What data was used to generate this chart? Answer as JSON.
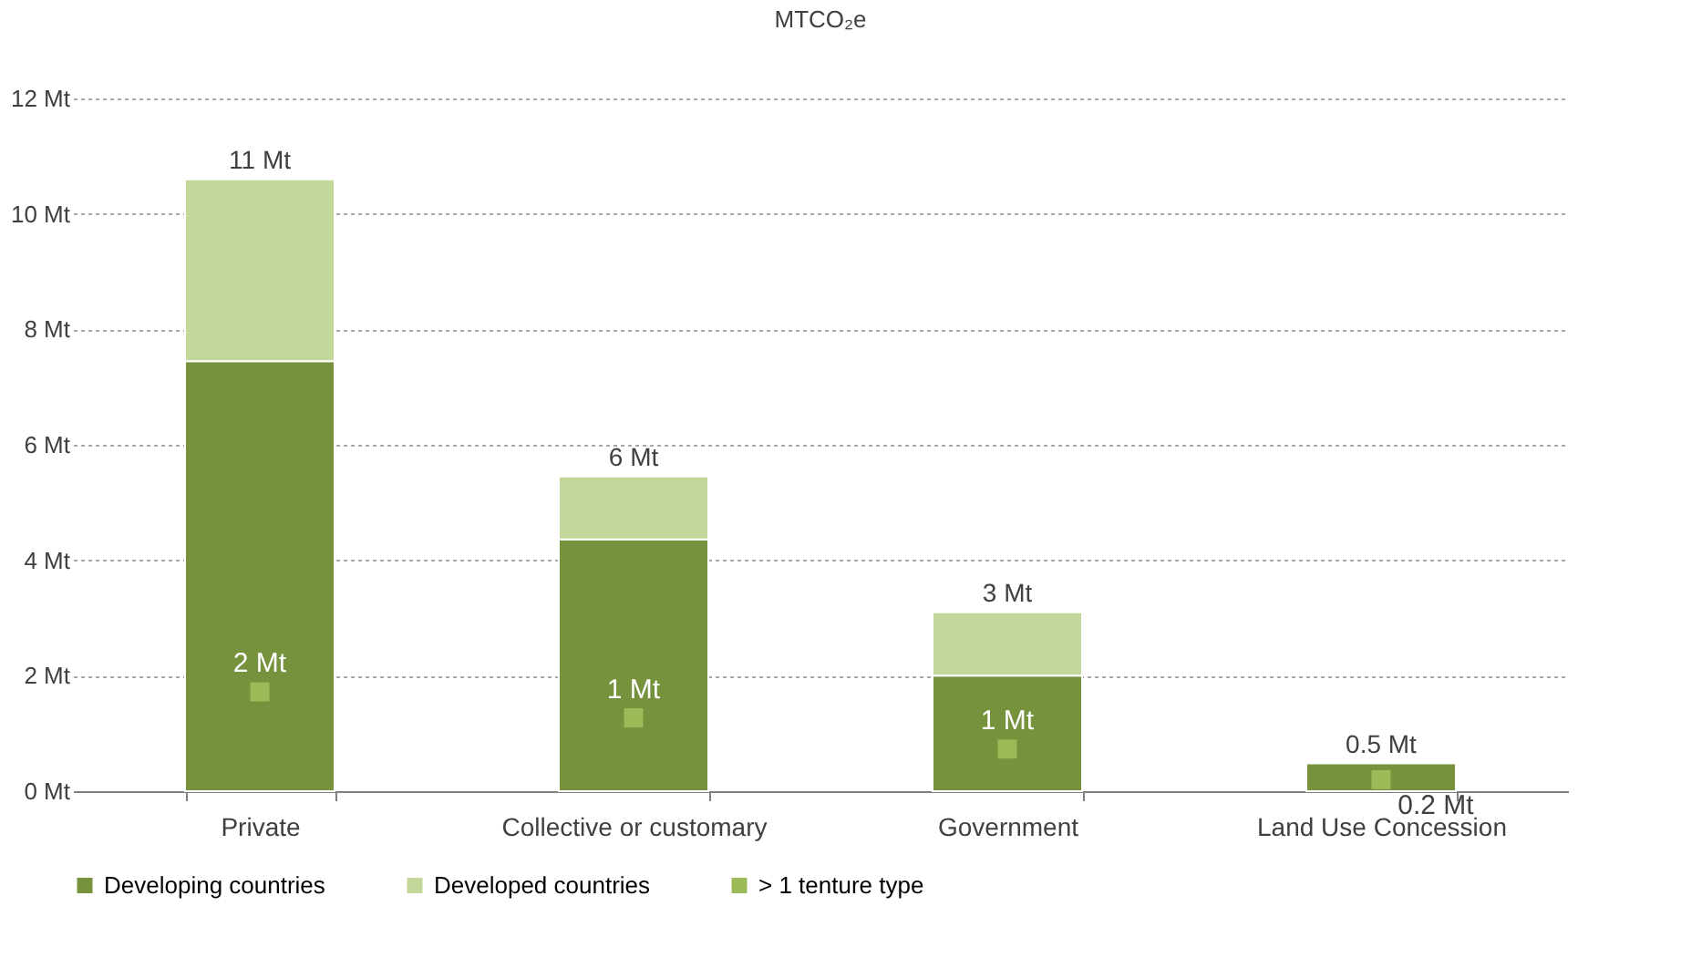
{
  "chart_data": {
    "type": "bar",
    "title": "MTCO₂e",
    "stacked": true,
    "categories": [
      "Private",
      "Collective or customary",
      "Government",
      "Land Use Concession"
    ],
    "series": [
      {
        "name": "Developing countries",
        "color": "#76923c",
        "values": [
          7.45,
          4.36,
          2.0,
          0.48
        ]
      },
      {
        "name": "Developed countries",
        "color": "#c4d79b",
        "values": [
          3.15,
          1.09,
          1.1,
          null
        ]
      },
      {
        "name": "> 1 tenture type",
        "type": "scatter",
        "marker": "square",
        "color": "#9bbb59",
        "values": [
          1.72,
          1.27,
          0.73,
          0.2
        ],
        "value_labels": [
          "2 Mt",
          "1 Mt",
          "1 Mt",
          "0.2 Mt"
        ]
      }
    ],
    "totals": [
      "11 Mt",
      "6 Mt",
      "3 Mt",
      "0.5 Mt"
    ],
    "ylim": [
      0,
      12
    ],
    "yticks": [
      {
        "value": 0,
        "label": "0 Mt"
      },
      {
        "value": 2,
        "label": "2 Mt"
      },
      {
        "value": 4,
        "label": "4 Mt"
      },
      {
        "value": 6,
        "label": "6 Mt"
      },
      {
        "value": 8,
        "label": "8 Mt"
      },
      {
        "value": 10,
        "label": "10 Mt"
      },
      {
        "value": 12,
        "label": "12 Mt"
      }
    ],
    "grid": "y",
    "legend": "bottom"
  }
}
